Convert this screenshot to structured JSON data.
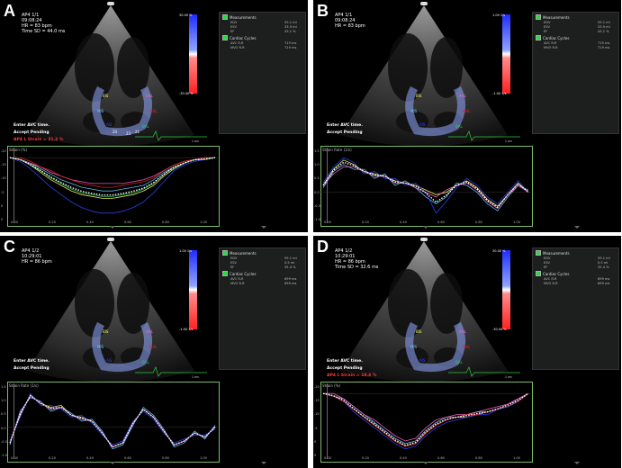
{
  "panels": [
    {
      "id": "A",
      "label": "A",
      "header": [
        "AP4 1/1",
        "09:08:24",
        "HR = 83 bpm",
        "Time SD = 44.0 ms"
      ],
      "colorbar": {
        "top": "30.00 %",
        "bottom": "-30.00 %"
      },
      "measurements_title": "Measurements",
      "measurements": [
        [
          "EDV",
          "59.1 ml"
        ],
        [
          "ESV",
          "33.9 ml"
        ],
        [
          "EF",
          "43.1 %"
        ]
      ],
      "cycles_title": "Cardiac Cycles",
      "cycles": [
        [
          "AVC R-R",
          "719 ms"
        ],
        [
          "MVO R-R",
          "719 ms"
        ]
      ],
      "avc_lines": [
        "Enter AVC time.",
        "Accept Pending"
      ],
      "strain_line": "AP4 L Strain = 21.2 %",
      "plot_title": "Strain (%)",
      "cm_label": "1 cm",
      "segment_labels": [
        "BIS",
        "MIS",
        "AIS",
        "AAL",
        "MAL",
        "BAL",
        "24",
        "23",
        "21"
      ],
      "yticks": [
        "-20",
        "-15",
        "-10",
        "-5",
        "0",
        "5"
      ],
      "xticks": [
        "0.00",
        "0.20",
        "0.40",
        "0.60",
        "0.80",
        "1.00"
      ]
    },
    {
      "id": "B",
      "label": "B",
      "header": [
        "AP4 1/1",
        "09:08:24",
        "HR = 83 bpm"
      ],
      "colorbar": {
        "top": "1.00 1/s",
        "bottom": "-1.00 1/s"
      },
      "measurements_title": "Measurements",
      "measurements": [
        [
          "EDV",
          "59.1 ml"
        ],
        [
          "ESV",
          "33.9 ml"
        ],
        [
          "EF",
          "43.1 %"
        ]
      ],
      "cycles_title": "Cardiac Cycles",
      "cycles": [
        [
          "AVC R-R",
          "719 ms"
        ],
        [
          "MVO R-R",
          "719 ms"
        ]
      ],
      "avc_lines": [
        "Enter AVC time.",
        "Accept Pending"
      ],
      "strain_line": "",
      "plot_title": "Strain Rate (1/s)",
      "cm_label": "1 cm",
      "segment_labels": [
        "BIS",
        "MIS",
        "AIS",
        "AAL",
        "MAL",
        "BAL"
      ],
      "yticks": [
        "1.5",
        "1.0",
        "0.5",
        "0.0",
        "-0.5",
        "-1.0"
      ],
      "xticks": [
        "0.00",
        "0.20",
        "0.40",
        "0.60",
        "0.80",
        "1.00"
      ]
    },
    {
      "id": "C",
      "label": "C",
      "header": [
        "AP4 1/2",
        "10:29:01",
        "HR = 86 bpm"
      ],
      "colorbar": {
        "top": "1.00 1/s",
        "bottom": "-1.00 1/s"
      },
      "measurements_title": "Measurements",
      "measurements": [
        [
          "EDV",
          "59.1 ml"
        ],
        [
          "ESV",
          "0.5 ml"
        ],
        [
          "EF",
          "35.4 %"
        ]
      ],
      "cycles_title": "Cardiac Cycles",
      "cycles": [
        [
          "AVC R-R",
          "699 ms"
        ],
        [
          "MVO R-R",
          "699 ms"
        ]
      ],
      "avc_lines": [
        "Enter AVC time.",
        "Accept Pending"
      ],
      "strain_line": "",
      "plot_title": "Strain Rate (1/s)",
      "cm_label": "1 cm",
      "segment_labels": [
        "BIS",
        "MIS",
        "AIS",
        "AAL",
        "MAL",
        "BAL"
      ],
      "yticks": [
        "1.5",
        "1.0",
        "0.5",
        "0.0",
        "-0.5",
        "-1.0"
      ],
      "xticks": [
        "0.00",
        "0.20",
        "0.40",
        "0.60",
        "0.80",
        "1.00"
      ]
    },
    {
      "id": "D",
      "label": "D",
      "header": [
        "AP4 1/2",
        "10:29:01",
        "HR = 86 bpm",
        "Time SD = 32.6 ms"
      ],
      "colorbar": {
        "top": "30.00 %",
        "bottom": "-30.00 %"
      },
      "measurements_title": "Measurements",
      "measurements": [
        [
          "EDV",
          "59.1 ml"
        ],
        [
          "ESV",
          "0.5 ml"
        ],
        [
          "EF",
          "35.4 %"
        ]
      ],
      "cycles_title": "Cardiac Cycles",
      "cycles": [
        [
          "AVC R-R",
          "699 ms"
        ],
        [
          "MVO R-R",
          "699 ms"
        ]
      ],
      "avc_lines": [
        "Enter AVC time.",
        "Accept Pending"
      ],
      "strain_line": "AP4 L Strain = 18.4 %",
      "plot_title": "Strain (%)",
      "cm_label": "1 cm",
      "segment_labels": [
        "BIS",
        "MIS",
        "AIS",
        "AAL",
        "MAL",
        "BAL"
      ],
      "yticks": [
        "-20",
        "-15",
        "-10",
        "-5",
        "0",
        "5"
      ],
      "xticks": [
        "0.00",
        "0.20",
        "0.40",
        "0.60",
        "0.80",
        "1.00"
      ]
    }
  ],
  "colors": {
    "plot_border": "#7dbb6a",
    "curves": [
      "#ffff66",
      "#66ccff",
      "#3344ff",
      "#ff66cc",
      "#ee2222",
      "#33cc66",
      "#ffffff"
    ],
    "strain_text": "#ff3a3a"
  },
  "chart_data": [
    {
      "panel": "A",
      "type": "line",
      "x": [
        0,
        0.05,
        0.1,
        0.15,
        0.2,
        0.25,
        0.3,
        0.35,
        0.4,
        0.45,
        0.5,
        0.55,
        0.6,
        0.65,
        0.7,
        0.75,
        0.8,
        0.85,
        0.9,
        0.95,
        1.0
      ],
      "series": [
        {
          "values": [
            0,
            -1,
            -4,
            -8,
            -12,
            -15,
            -18,
            -20,
            -21,
            -22,
            -22,
            -21,
            -20,
            -18,
            -15,
            -10,
            -6,
            -3,
            -1,
            -1,
            0
          ]
        },
        {
          "values": [
            0,
            -1,
            -3,
            -6,
            -9,
            -12,
            -14,
            -16,
            -17,
            -18,
            -18,
            -17,
            -16,
            -15,
            -12,
            -8,
            -5,
            -3,
            -1,
            -1,
            0
          ]
        },
        {
          "values": [
            0,
            -2,
            -6,
            -11,
            -16,
            -20,
            -24,
            -27,
            -29,
            -30,
            -30,
            -29,
            -27,
            -24,
            -19,
            -13,
            -7,
            -4,
            -2,
            -1,
            0
          ]
        },
        {
          "values": [
            0,
            -1,
            -3,
            -5,
            -8,
            -10,
            -12,
            -13,
            -14,
            -14,
            -14,
            -14,
            -13,
            -12,
            -10,
            -7,
            -4,
            -2,
            -1,
            0,
            0
          ]
        },
        {
          "values": [
            0,
            0,
            -2,
            -5,
            -7,
            -10,
            -12,
            -14,
            -15,
            -16,
            -16,
            -15,
            -14,
            -13,
            -11,
            -7,
            -4,
            -2,
            -1,
            0,
            0
          ]
        },
        {
          "values": [
            0,
            -1,
            -4,
            -7,
            -11,
            -14,
            -17,
            -19,
            -20,
            -21,
            -21,
            -20,
            -19,
            -17,
            -14,
            -9,
            -5,
            -3,
            -1,
            -1,
            0
          ]
        }
      ]
    },
    {
      "panel": "B",
      "type": "line",
      "x": [
        0,
        0.05,
        0.1,
        0.15,
        0.2,
        0.25,
        0.3,
        0.35,
        0.4,
        0.45,
        0.5,
        0.55,
        0.6,
        0.65,
        0.7,
        0.75,
        0.8,
        0.85,
        0.9,
        0.95,
        1.0
      ],
      "series": [
        {
          "values": [
            0.3,
            1.0,
            1.4,
            1.2,
            0.9,
            0.8,
            0.7,
            0.5,
            0.4,
            0.3,
            0.1,
            -0.1,
            0.0,
            0.3,
            0.5,
            0.2,
            -0.3,
            -0.6,
            -0.1,
            0.4,
            0.0
          ]
        },
        {
          "values": [
            0.2,
            0.9,
            1.2,
            1.0,
            1.0,
            0.6,
            0.8,
            0.3,
            0.5,
            0.2,
            -0.2,
            -0.5,
            -0.2,
            0.4,
            0.3,
            0.0,
            -0.5,
            -0.8,
            -0.2,
            0.3,
            0.1
          ]
        },
        {
          "values": [
            0.4,
            1.1,
            1.5,
            1.3,
            0.8,
            0.9,
            0.6,
            0.6,
            0.3,
            0.4,
            0.0,
            -0.9,
            -0.4,
            0.2,
            0.6,
            0.3,
            -0.2,
            -0.5,
            0.0,
            0.5,
            0.0
          ]
        },
        {
          "values": [
            0.3,
            0.8,
            1.1,
            1.1,
            0.9,
            0.7,
            0.7,
            0.4,
            0.4,
            0.2,
            0.0,
            -0.2,
            0.1,
            0.3,
            0.4,
            0.1,
            -0.4,
            -0.7,
            -0.1,
            0.3,
            0.0
          ]
        }
      ]
    },
    {
      "panel": "C",
      "type": "line",
      "x": [
        0,
        0.05,
        0.1,
        0.15,
        0.2,
        0.25,
        0.3,
        0.35,
        0.4,
        0.45,
        0.5,
        0.55,
        0.6,
        0.65,
        0.7,
        0.75,
        0.8,
        0.85,
        0.9,
        0.95,
        1.0
      ],
      "series": [
        {
          "values": [
            -0.8,
            0.6,
            1.6,
            1.2,
            1.0,
            1.1,
            0.6,
            0.5,
            0.3,
            -0.3,
            -1.0,
            -0.8,
            0.2,
            0.9,
            0.5,
            -0.2,
            -0.9,
            -0.7,
            -0.3,
            -0.5,
            0.0
          ]
        },
        {
          "values": [
            -0.9,
            0.8,
            1.5,
            1.3,
            0.8,
            1.0,
            0.7,
            0.3,
            0.4,
            -0.2,
            -1.1,
            -0.9,
            0.1,
            1.0,
            0.6,
            -0.1,
            -1.0,
            -0.8,
            -0.2,
            -0.6,
            0.1
          ]
        },
        {
          "values": [
            -0.7,
            0.5,
            1.7,
            1.1,
            1.1,
            0.9,
            0.5,
            0.6,
            0.2,
            -0.4,
            -0.9,
            -0.7,
            0.3,
            0.8,
            0.4,
            -0.3,
            -0.8,
            -0.6,
            -0.4,
            -0.4,
            -0.1
          ]
        },
        {
          "values": [
            -0.8,
            0.7,
            1.6,
            1.2,
            0.9,
            1.0,
            0.6,
            0.4,
            0.3,
            -0.3,
            -1.0,
            -0.8,
            0.2,
            0.9,
            0.5,
            -0.2,
            -0.9,
            -0.7,
            -0.3,
            -0.5,
            0.0
          ]
        }
      ]
    },
    {
      "panel": "D",
      "type": "line",
      "x": [
        0,
        0.05,
        0.1,
        0.15,
        0.2,
        0.25,
        0.3,
        0.35,
        0.4,
        0.45,
        0.5,
        0.55,
        0.6,
        0.65,
        0.7,
        0.75,
        0.8,
        0.85,
        0.9,
        0.95,
        1.0
      ],
      "series": [
        {
          "values": [
            0,
            -1,
            -3,
            -6,
            -9,
            -12,
            -15,
            -18,
            -20,
            -19,
            -15,
            -12,
            -10,
            -9,
            -9,
            -8,
            -7,
            -6,
            -5,
            -3,
            0
          ]
        },
        {
          "values": [
            0,
            -1,
            -2,
            -5,
            -8,
            -11,
            -14,
            -17,
            -19,
            -18,
            -14,
            -11,
            -9,
            -9,
            -8,
            -7,
            -7,
            -6,
            -4,
            -2,
            0
          ]
        },
        {
          "values": [
            0,
            -1,
            -3,
            -7,
            -10,
            -13,
            -16,
            -19,
            -21,
            -20,
            -16,
            -13,
            -11,
            -10,
            -9,
            -8,
            -8,
            -6,
            -5,
            -3,
            0
          ]
        },
        {
          "values": [
            0,
            0,
            -2,
            -5,
            -8,
            -10,
            -13,
            -16,
            -18,
            -17,
            -13,
            -10,
            -9,
            -8,
            -8,
            -7,
            -6,
            -5,
            -4,
            -2,
            0
          ]
        },
        {
          "values": [
            0,
            -1,
            -3,
            -6,
            -9,
            -12,
            -15,
            -18,
            -20,
            -19,
            -15,
            -12,
            -10,
            -9,
            -8,
            -8,
            -7,
            -6,
            -4,
            -3,
            0
          ]
        }
      ]
    }
  ]
}
